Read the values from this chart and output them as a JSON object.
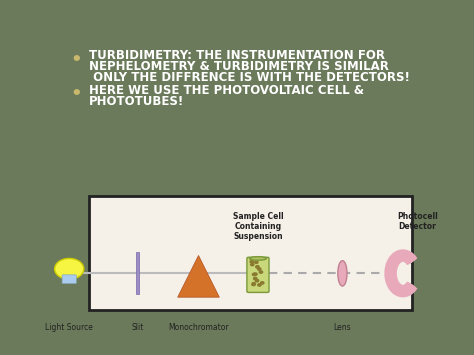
{
  "bg_color": "#6b7a5a",
  "bullet1_line1": "TURBIDIMETRY: THE INSTRUMENTATION FOR",
  "bullet1_line2": "NEPHELOMETRY & TURBIDIMETRY IS SIMILAR",
  "bullet1_line3": " ONLY THE DIFFRENCE IS WITH THE DETECTORS!",
  "bullet2_line1": "HERE WE USE THE PHOTOVOLTAIC CELL &",
  "bullet2_line2": "PHOTOTUBES!",
  "diagram_bg": "#f5f0e8",
  "diagram_border": "#222222",
  "label_light_source": "Light Source",
  "label_slit": "Slit",
  "label_monochromator": "Monochromator",
  "label_sample_cell_line1": "Sample Cell",
  "label_sample_cell_line2": "Containing",
  "label_sample_cell_line3": "Suspension",
  "label_lens": "Lens",
  "label_photocell_line1": "Photocell",
  "label_photocell_line2": "Detector",
  "text_color_bullet": "#ffffff",
  "bullet_color": "#c8b86e",
  "diagram_text_color": "#222222"
}
